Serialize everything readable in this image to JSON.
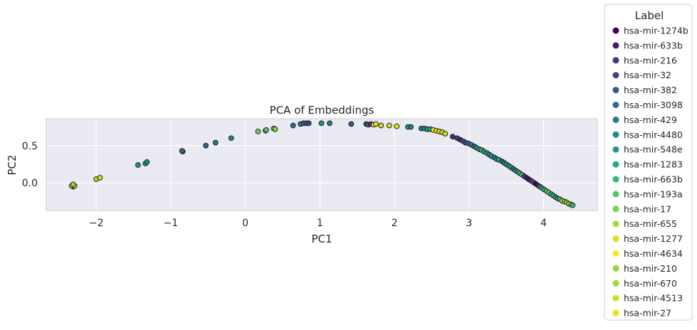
{
  "chart_data": {
    "type": "scatter",
    "title": "PCA of Embeddings",
    "xlabel": "PC1",
    "ylabel": "PC2",
    "xlim": [
      -2.67,
      4.72
    ],
    "ylim": [
      -0.37,
      0.86
    ],
    "xticks": [
      -2,
      -1,
      0,
      1,
      2,
      3,
      4
    ],
    "yticks": [
      0.0,
      0.5
    ],
    "xtick_labels": [
      "−2",
      "−1",
      "0",
      "1",
      "2",
      "3",
      "4"
    ],
    "ytick_labels": [
      "0.0",
      "0.5"
    ],
    "grid": true,
    "legend_placement": "outside-right",
    "legend": {
      "title": "Label",
      "entries": [
        {
          "label": "hsa-mir-1274b",
          "color": "#440154"
        },
        {
          "label": "hsa-mir-633b",
          "color": "#481a6c"
        },
        {
          "label": "hsa-mir-216",
          "color": "#472f7d"
        },
        {
          "label": "hsa-mir-32",
          "color": "#414487"
        },
        {
          "label": "hsa-mir-382",
          "color": "#39568c"
        },
        {
          "label": "hsa-mir-3098",
          "color": "#31688e"
        },
        {
          "label": "hsa-mir-429",
          "color": "#2a788e"
        },
        {
          "label": "hsa-mir-4480",
          "color": "#23888e"
        },
        {
          "label": "hsa-mir-548e",
          "color": "#1f988b"
        },
        {
          "label": "hsa-mir-1283",
          "color": "#22a884"
        },
        {
          "label": "hsa-mir-663b",
          "color": "#35b779"
        },
        {
          "label": "hsa-mir-193a",
          "color": "#54c568"
        },
        {
          "label": "hsa-mir-17",
          "color": "#7ad151"
        },
        {
          "label": "hsa-mir-655",
          "color": "#a5db36"
        },
        {
          "label": "hsa-mir-1277",
          "color": "#d2e21b"
        },
        {
          "label": "hsa-mir-4634",
          "color": "#fde725"
        },
        {
          "label": "hsa-mir-210",
          "color": "#8fd744"
        },
        {
          "label": "hsa-mir-670",
          "color": "#9fda3a"
        },
        {
          "label": "hsa-mir-4513",
          "color": "#c8e020"
        },
        {
          "label": "hsa-mir-27",
          "color": "#e4e419"
        }
      ]
    },
    "points": [
      {
        "x": -2.32,
        "y": -0.03,
        "c": 18
      },
      {
        "x": -2.31,
        "y": -0.05,
        "c": 14
      },
      {
        "x": -2.33,
        "y": -0.04,
        "c": 12
      },
      {
        "x": -2.3,
        "y": -0.03,
        "c": 16
      },
      {
        "x": -2.29,
        "y": -0.04,
        "c": 13
      },
      {
        "x": -2.31,
        "y": -0.02,
        "c": 17
      },
      {
        "x": -2.0,
        "y": 0.05,
        "c": 18
      },
      {
        "x": -1.95,
        "y": 0.07,
        "c": 14
      },
      {
        "x": -1.44,
        "y": 0.24,
        "c": 8
      },
      {
        "x": -1.34,
        "y": 0.26,
        "c": 9
      },
      {
        "x": -1.32,
        "y": 0.28,
        "c": 7
      },
      {
        "x": -0.84,
        "y": 0.42,
        "c": 6
      },
      {
        "x": -0.85,
        "y": 0.43,
        "c": 5
      },
      {
        "x": -0.53,
        "y": 0.5,
        "c": 5
      },
      {
        "x": -0.4,
        "y": 0.54,
        "c": 6
      },
      {
        "x": -0.19,
        "y": 0.6,
        "c": 7
      },
      {
        "x": 0.17,
        "y": 0.69,
        "c": 12
      },
      {
        "x": 0.27,
        "y": 0.7,
        "c": 13
      },
      {
        "x": 0.28,
        "y": 0.71,
        "c": 11
      },
      {
        "x": 0.38,
        "y": 0.73,
        "c": 12
      },
      {
        "x": 0.4,
        "y": 0.72,
        "c": 16
      },
      {
        "x": 0.64,
        "y": 0.77,
        "c": 5
      },
      {
        "x": 0.74,
        "y": 0.79,
        "c": 6
      },
      {
        "x": 0.78,
        "y": 0.8,
        "c": 4
      },
      {
        "x": 0.82,
        "y": 0.8,
        "c": 5
      },
      {
        "x": 0.85,
        "y": 0.8,
        "c": 3
      },
      {
        "x": 1.02,
        "y": 0.8,
        "c": 7
      },
      {
        "x": 1.13,
        "y": 0.8,
        "c": 6
      },
      {
        "x": 1.42,
        "y": 0.79,
        "c": 4
      },
      {
        "x": 1.62,
        "y": 0.79,
        "c": 3
      },
      {
        "x": 1.65,
        "y": 0.78,
        "c": 5
      },
      {
        "x": 1.68,
        "y": 0.79,
        "c": 2
      },
      {
        "x": 1.72,
        "y": 0.78,
        "c": 15
      },
      {
        "x": 1.75,
        "y": 0.79,
        "c": 19
      },
      {
        "x": 1.82,
        "y": 0.77,
        "c": 18
      },
      {
        "x": 1.93,
        "y": 0.77,
        "c": 14
      },
      {
        "x": 2.03,
        "y": 0.76,
        "c": 19
      },
      {
        "x": 2.18,
        "y": 0.75,
        "c": 8
      },
      {
        "x": 2.22,
        "y": 0.75,
        "c": 7
      },
      {
        "x": 2.36,
        "y": 0.73,
        "c": 6
      },
      {
        "x": 2.4,
        "y": 0.73,
        "c": 7
      },
      {
        "x": 2.44,
        "y": 0.72,
        "c": 8
      },
      {
        "x": 2.48,
        "y": 0.72,
        "c": 9
      },
      {
        "x": 2.52,
        "y": 0.71,
        "c": 15
      },
      {
        "x": 2.56,
        "y": 0.7,
        "c": 19
      },
      {
        "x": 2.6,
        "y": 0.69,
        "c": 18
      },
      {
        "x": 2.64,
        "y": 0.68,
        "c": 14
      },
      {
        "x": 2.68,
        "y": 0.66,
        "c": 18
      },
      {
        "x": 2.78,
        "y": 0.62,
        "c": 2
      },
      {
        "x": 2.84,
        "y": 0.6,
        "c": 3
      },
      {
        "x": 2.88,
        "y": 0.58,
        "c": 1
      },
      {
        "x": 2.92,
        "y": 0.56,
        "c": 4
      },
      {
        "x": 2.95,
        "y": 0.54,
        "c": 3
      },
      {
        "x": 2.99,
        "y": 0.53,
        "c": 5
      },
      {
        "x": 3.03,
        "y": 0.51,
        "c": 6
      },
      {
        "x": 3.07,
        "y": 0.49,
        "c": 5
      },
      {
        "x": 3.1,
        "y": 0.47,
        "c": 7
      },
      {
        "x": 3.14,
        "y": 0.45,
        "c": 9
      },
      {
        "x": 3.17,
        "y": 0.44,
        "c": 10
      },
      {
        "x": 3.2,
        "y": 0.42,
        "c": 8
      },
      {
        "x": 3.24,
        "y": 0.4,
        "c": 9
      },
      {
        "x": 3.27,
        "y": 0.38,
        "c": 7
      },
      {
        "x": 3.3,
        "y": 0.36,
        "c": 8
      },
      {
        "x": 3.34,
        "y": 0.34,
        "c": 6
      },
      {
        "x": 3.37,
        "y": 0.32,
        "c": 7
      },
      {
        "x": 3.4,
        "y": 0.31,
        "c": 9
      },
      {
        "x": 3.44,
        "y": 0.29,
        "c": 5
      },
      {
        "x": 3.47,
        "y": 0.27,
        "c": 6
      },
      {
        "x": 3.5,
        "y": 0.25,
        "c": 7
      },
      {
        "x": 3.53,
        "y": 0.23,
        "c": 8
      },
      {
        "x": 3.56,
        "y": 0.21,
        "c": 9
      },
      {
        "x": 3.59,
        "y": 0.19,
        "c": 6
      },
      {
        "x": 3.62,
        "y": 0.17,
        "c": 7
      },
      {
        "x": 3.65,
        "y": 0.15,
        "c": 8
      },
      {
        "x": 3.68,
        "y": 0.13,
        "c": 10
      },
      {
        "x": 3.71,
        "y": 0.11,
        "c": 11
      },
      {
        "x": 3.74,
        "y": 0.09,
        "c": 3
      },
      {
        "x": 3.77,
        "y": 0.07,
        "c": 1
      },
      {
        "x": 3.8,
        "y": 0.05,
        "c": 0
      },
      {
        "x": 3.83,
        "y": 0.03,
        "c": 2
      },
      {
        "x": 3.86,
        "y": 0.01,
        "c": 4
      },
      {
        "x": 3.89,
        "y": -0.01,
        "c": 0
      },
      {
        "x": 3.92,
        "y": -0.03,
        "c": 1
      },
      {
        "x": 3.95,
        "y": -0.05,
        "c": 6
      },
      {
        "x": 3.98,
        "y": -0.07,
        "c": 9
      },
      {
        "x": 4.01,
        "y": -0.09,
        "c": 10
      },
      {
        "x": 4.04,
        "y": -0.11,
        "c": 11
      },
      {
        "x": 4.07,
        "y": -0.13,
        "c": 12
      },
      {
        "x": 4.1,
        "y": -0.15,
        "c": 9
      },
      {
        "x": 4.13,
        "y": -0.17,
        "c": 10
      },
      {
        "x": 4.16,
        "y": -0.19,
        "c": 8
      },
      {
        "x": 4.19,
        "y": -0.21,
        "c": 9
      },
      {
        "x": 4.22,
        "y": -0.22,
        "c": 11
      },
      {
        "x": 4.25,
        "y": -0.24,
        "c": 14
      },
      {
        "x": 4.28,
        "y": -0.25,
        "c": 12
      },
      {
        "x": 4.31,
        "y": -0.26,
        "c": 16
      },
      {
        "x": 4.34,
        "y": -0.28,
        "c": 13
      },
      {
        "x": 4.37,
        "y": -0.29,
        "c": 17
      },
      {
        "x": 4.39,
        "y": -0.3,
        "c": 10
      }
    ]
  }
}
